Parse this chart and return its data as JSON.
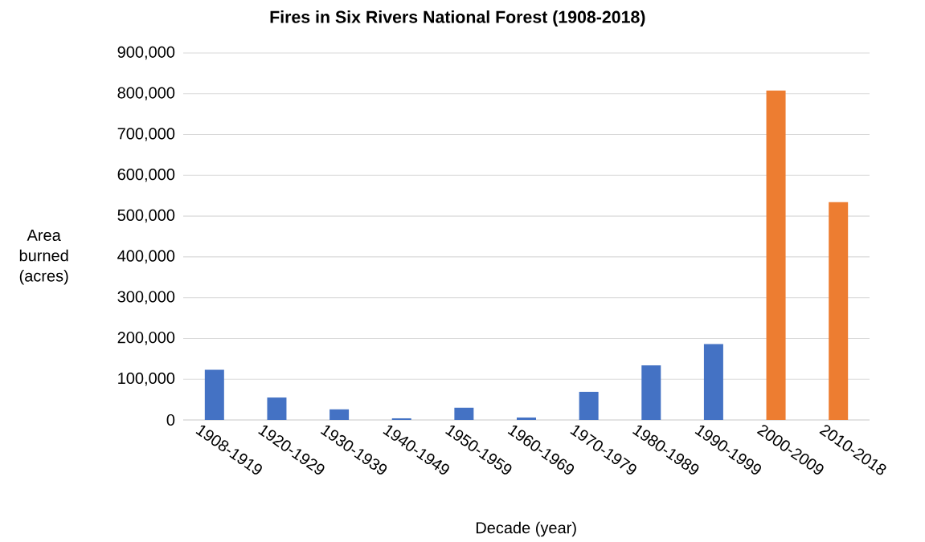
{
  "chart_data": {
    "type": "bar",
    "title": "Fires in Six Rivers National Forest (1908-2018)",
    "xlabel": "Decade (year)",
    "ylabel": "Area burned (acres)",
    "categories": [
      "1908-1919",
      "1920-1929",
      "1930-1939",
      "1940-1949",
      "1950-1959",
      "1960-1969",
      "1970-1979",
      "1980-1989",
      "1990-1999",
      "2000-2009",
      "2010-2018"
    ],
    "values": [
      123000,
      55000,
      26000,
      4000,
      30000,
      6000,
      69000,
      134000,
      186000,
      808000,
      534000
    ],
    "colors": [
      "#4472c4",
      "#4472c4",
      "#4472c4",
      "#4472c4",
      "#4472c4",
      "#4472c4",
      "#4472c4",
      "#4472c4",
      "#4472c4",
      "#ed7d31",
      "#ed7d31"
    ],
    "ylim": [
      0,
      900000
    ],
    "yticks": [
      0,
      {
        "value": 100000,
        "label": "100,000"
      },
      {
        "value": 200000,
        "label": "200,000"
      },
      {
        "value": 300000,
        "label": "300,000"
      },
      {
        "value": 400000,
        "label": "400,000"
      },
      {
        "value": 500000,
        "label": "500,000"
      },
      {
        "value": 600000,
        "label": "600,000"
      },
      {
        "value": 700000,
        "label": "700,000"
      },
      {
        "value": 800000,
        "label": "800,000"
      },
      {
        "value": 900000,
        "label": "900,000"
      }
    ],
    "grid": "y"
  }
}
